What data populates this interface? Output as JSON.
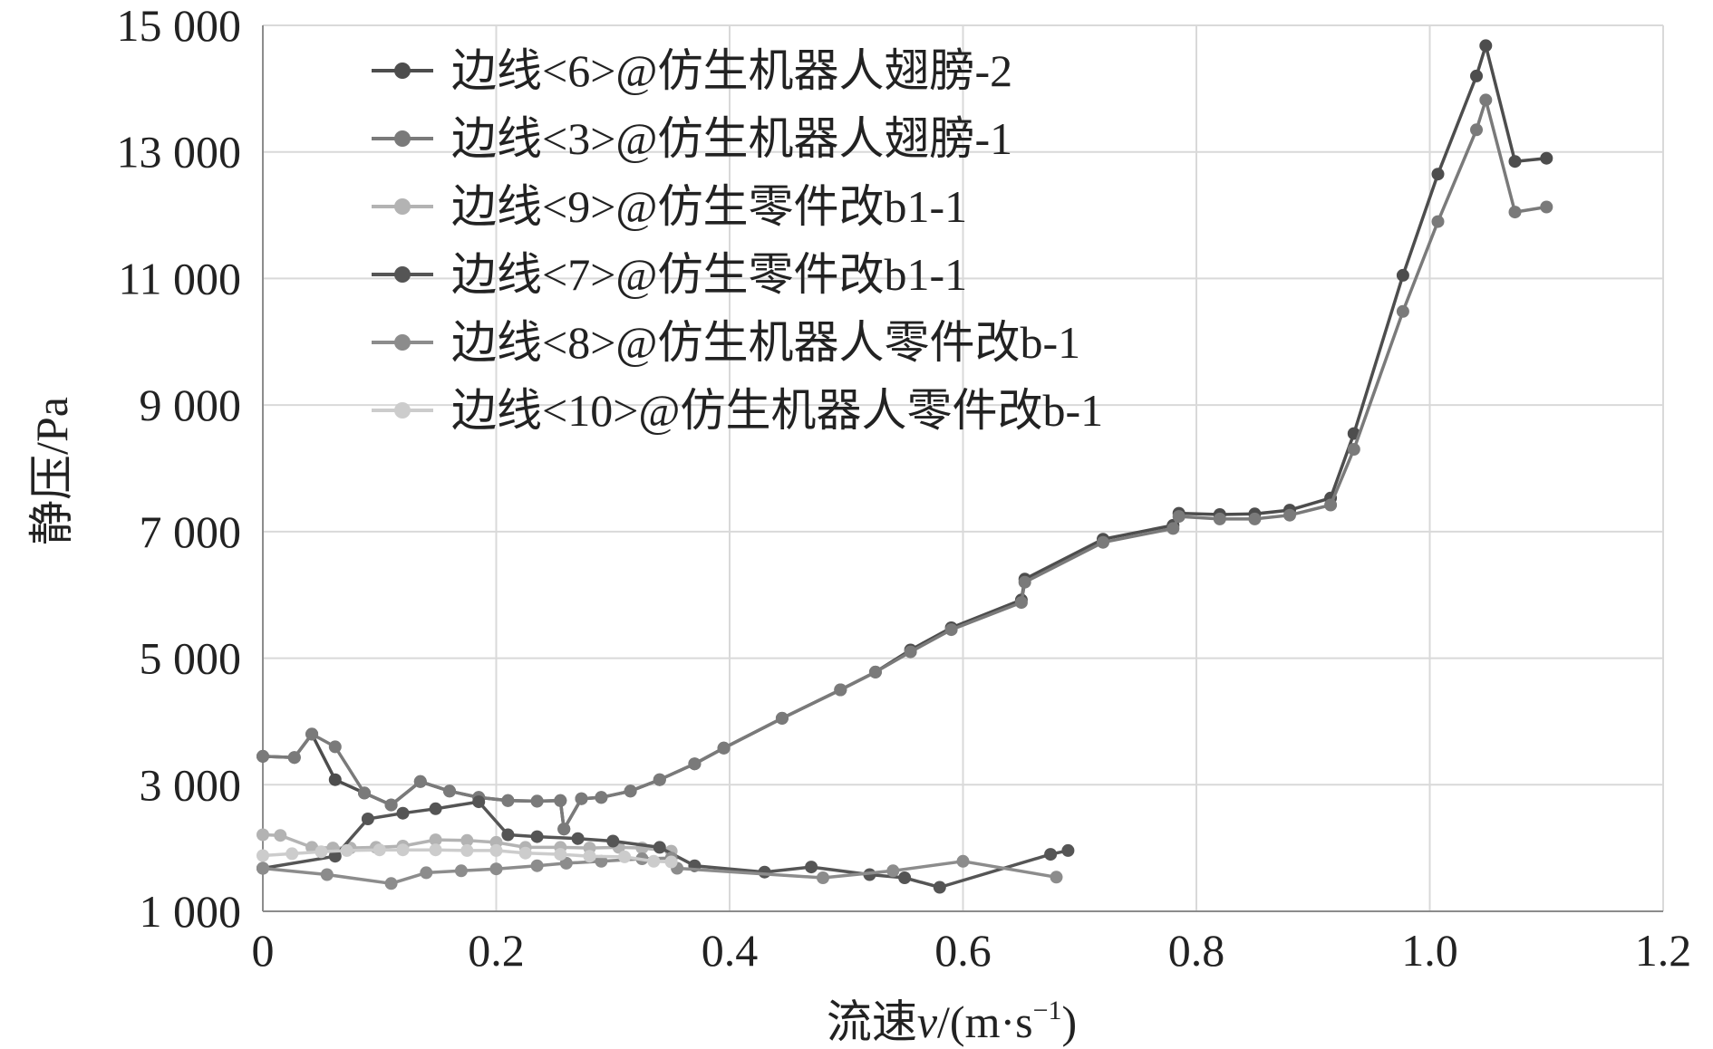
{
  "chart_data": {
    "type": "line",
    "xlabel": "流速v/(m·s⁻¹)",
    "xlabel_parts": {
      "prefix": "流速",
      "italic": "v",
      "suffix": "/(m·s",
      "sup": "−1",
      "close": ")"
    },
    "ylabel": "静压/Pa",
    "xlim": [
      0,
      1.2
    ],
    "ylim": [
      1000,
      15000
    ],
    "x_ticks": [
      0,
      0.2,
      0.4,
      0.6,
      0.8,
      1.0,
      1.2
    ],
    "x_tick_labels": [
      "0",
      "0.2",
      "0.4",
      "0.6",
      "0.8",
      "1.0",
      "1.2"
    ],
    "y_ticks": [
      1000,
      3000,
      5000,
      7000,
      9000,
      11000,
      13000,
      15000
    ],
    "y_tick_labels": [
      "1 000",
      "3 000",
      "5 000",
      "7 000",
      "9 000",
      "11 000",
      "13 000",
      "15 000"
    ],
    "grid": true,
    "legend_position": "top-left",
    "series": [
      {
        "name": "边线<6>@仿生机器人翅膀-2",
        "color": "#4d4d4d",
        "points": [
          [
            0,
            3450
          ],
          [
            0.027,
            3430
          ],
          [
            0.042,
            3800
          ],
          [
            0.062,
            3080
          ],
          [
            0.087,
            2870
          ],
          [
            0.11,
            2680
          ],
          [
            0.135,
            3050
          ],
          [
            0.16,
            2900
          ],
          [
            0.185,
            2800
          ],
          [
            0.21,
            2750
          ],
          [
            0.235,
            2740
          ],
          [
            0.255,
            2750
          ],
          [
            0.258,
            2300
          ],
          [
            0.273,
            2780
          ],
          [
            0.29,
            2800
          ],
          [
            0.315,
            2900
          ],
          [
            0.34,
            3080
          ],
          [
            0.37,
            3330
          ],
          [
            0.395,
            3580
          ],
          [
            0.445,
            4050
          ],
          [
            0.495,
            4500
          ],
          [
            0.525,
            4780
          ],
          [
            0.555,
            5130
          ],
          [
            0.59,
            5480
          ],
          [
            0.65,
            5920
          ],
          [
            0.653,
            6250
          ],
          [
            0.72,
            6880
          ],
          [
            0.78,
            7100
          ],
          [
            0.785,
            7290
          ],
          [
            0.82,
            7270
          ],
          [
            0.85,
            7280
          ],
          [
            0.88,
            7340
          ],
          [
            0.915,
            7530
          ],
          [
            0.935,
            8550
          ],
          [
            0.977,
            11050
          ],
          [
            1.007,
            12650
          ],
          [
            1.04,
            14200
          ],
          [
            1.048,
            14680
          ],
          [
            1.073,
            12850
          ],
          [
            1.1,
            12900
          ]
        ]
      },
      {
        "name": "边线<3>@仿生机器人翅膀-1",
        "color": "#7a7a7a",
        "points": [
          [
            0,
            3450
          ],
          [
            0.027,
            3430
          ],
          [
            0.042,
            3800
          ],
          [
            0.062,
            3600
          ],
          [
            0.087,
            2870
          ],
          [
            0.11,
            2680
          ],
          [
            0.135,
            3050
          ],
          [
            0.16,
            2900
          ],
          [
            0.185,
            2800
          ],
          [
            0.21,
            2750
          ],
          [
            0.235,
            2740
          ],
          [
            0.255,
            2750
          ],
          [
            0.258,
            2300
          ],
          [
            0.273,
            2780
          ],
          [
            0.29,
            2800
          ],
          [
            0.315,
            2900
          ],
          [
            0.34,
            3080
          ],
          [
            0.37,
            3330
          ],
          [
            0.395,
            3580
          ],
          [
            0.445,
            4050
          ],
          [
            0.495,
            4500
          ],
          [
            0.525,
            4780
          ],
          [
            0.555,
            5100
          ],
          [
            0.59,
            5450
          ],
          [
            0.65,
            5880
          ],
          [
            0.653,
            6200
          ],
          [
            0.72,
            6830
          ],
          [
            0.78,
            7050
          ],
          [
            0.785,
            7240
          ],
          [
            0.82,
            7200
          ],
          [
            0.85,
            7200
          ],
          [
            0.88,
            7260
          ],
          [
            0.915,
            7420
          ],
          [
            0.935,
            8300
          ],
          [
            0.977,
            10480
          ],
          [
            1.007,
            11900
          ],
          [
            1.04,
            13350
          ],
          [
            1.048,
            13820
          ],
          [
            1.073,
            12050
          ],
          [
            1.1,
            12130
          ]
        ]
      },
      {
        "name": "边线<9>@仿生零件改b1-1",
        "color": "#b3b3b3",
        "points": [
          [
            0,
            2210
          ],
          [
            0.015,
            2200
          ],
          [
            0.042,
            2010
          ],
          [
            0.06,
            2000
          ],
          [
            0.075,
            2000
          ],
          [
            0.097,
            2010
          ],
          [
            0.12,
            2030
          ],
          [
            0.148,
            2130
          ],
          [
            0.175,
            2120
          ],
          [
            0.2,
            2090
          ],
          [
            0.225,
            2010
          ],
          [
            0.255,
            2010
          ],
          [
            0.28,
            2000
          ],
          [
            0.305,
            2010
          ],
          [
            0.325,
            2000
          ],
          [
            0.35,
            1950
          ]
        ]
      },
      {
        "name": "边线<7>@仿生零件改b1-1",
        "color": "#555555",
        "points": [
          [
            0,
            1680
          ],
          [
            0.062,
            1870
          ],
          [
            0.09,
            2460
          ],
          [
            0.12,
            2550
          ],
          [
            0.148,
            2620
          ],
          [
            0.185,
            2730
          ],
          [
            0.21,
            2210
          ],
          [
            0.235,
            2180
          ],
          [
            0.27,
            2150
          ],
          [
            0.3,
            2110
          ],
          [
            0.34,
            2010
          ],
          [
            0.37,
            1720
          ],
          [
            0.43,
            1620
          ],
          [
            0.47,
            1700
          ],
          [
            0.52,
            1580
          ],
          [
            0.55,
            1530
          ],
          [
            0.58,
            1380
          ],
          [
            0.675,
            1900
          ],
          [
            0.69,
            1960
          ]
        ]
      },
      {
        "name": "边线<8>@仿生机器人零件改b-1",
        "color": "#8c8c8c",
        "points": [
          [
            0,
            1680
          ],
          [
            0.055,
            1580
          ],
          [
            0.11,
            1440
          ],
          [
            0.14,
            1610
          ],
          [
            0.17,
            1640
          ],
          [
            0.2,
            1670
          ],
          [
            0.235,
            1720
          ],
          [
            0.26,
            1760
          ],
          [
            0.29,
            1790
          ],
          [
            0.325,
            1830
          ],
          [
            0.35,
            1840
          ],
          [
            0.355,
            1680
          ],
          [
            0.48,
            1530
          ],
          [
            0.54,
            1640
          ],
          [
            0.6,
            1790
          ],
          [
            0.68,
            1540
          ]
        ]
      },
      {
        "name": "边线<10>@仿生机器人零件改b-1",
        "color": "#cccccc",
        "points": [
          [
            0,
            1880
          ],
          [
            0.025,
            1910
          ],
          [
            0.05,
            1940
          ],
          [
            0.072,
            1960
          ],
          [
            0.1,
            1970
          ],
          [
            0.12,
            1970
          ],
          [
            0.148,
            1970
          ],
          [
            0.175,
            1960
          ],
          [
            0.2,
            1960
          ],
          [
            0.225,
            1920
          ],
          [
            0.255,
            1900
          ],
          [
            0.28,
            1870
          ],
          [
            0.31,
            1860
          ],
          [
            0.335,
            1790
          ],
          [
            0.35,
            1780
          ]
        ]
      }
    ]
  }
}
